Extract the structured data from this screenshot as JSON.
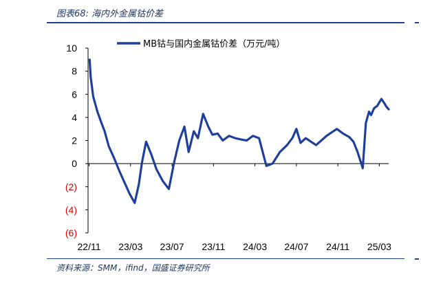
{
  "figure": {
    "title": "图表68: 海内外金属钴价差",
    "source": "资料来源：SMM，ifind，国盛证券研究所"
  },
  "colors": {
    "series": "#1f3f9a",
    "negative_tick": "#e00000",
    "rule": "#1f3f8f"
  },
  "chart_data": {
    "type": "line",
    "title": "",
    "xlabel": "",
    "ylabel": "",
    "ylim": [
      -6,
      10
    ],
    "yticks": [
      10,
      8,
      6,
      4,
      2,
      0,
      -2,
      -4,
      -6
    ],
    "ytick_labels": [
      "10",
      "8",
      "6",
      "4",
      "2",
      "0",
      "(2)",
      "(4)",
      "(6)"
    ],
    "xticks": [
      "22/11",
      "23/03",
      "23/07",
      "23/11",
      "24/03",
      "24/07",
      "24/11",
      "25/03"
    ],
    "x_range": [
      0,
      29
    ],
    "grid": false,
    "legend": "top-center",
    "series": [
      {
        "name": "MB钴与国内金属钴价差（万元/吨）",
        "x": [
          0.15,
          0.25,
          0.5,
          0.9,
          1.3,
          1.6,
          2.0,
          2.5,
          3.0,
          3.5,
          4.0,
          4.5,
          4.9,
          5.2,
          5.6,
          6.1,
          6.6,
          7.2,
          7.8,
          8.3,
          8.8,
          9.3,
          9.7,
          10.2,
          10.6,
          11.1,
          11.6,
          12.0,
          12.5,
          13.0,
          13.6,
          14.2,
          14.7,
          15.3,
          15.9,
          16.5,
          17.2,
          17.8,
          18.5,
          19.2,
          19.7,
          20.1,
          20.5,
          21.0,
          21.5,
          22.0,
          22.5,
          23.0,
          23.5,
          24.0,
          24.6,
          25.2,
          25.6,
          26.0,
          26.5,
          26.8,
          27.1,
          27.3,
          27.6,
          27.9,
          28.3,
          28.6,
          28.8,
          29.0
        ],
        "values": [
          9.0,
          7.5,
          5.8,
          4.5,
          3.5,
          2.8,
          1.5,
          0.5,
          -0.6,
          -1.6,
          -2.6,
          -3.4,
          -1.8,
          0.1,
          1.9,
          0.8,
          -0.5,
          -1.5,
          -2.2,
          0.1,
          2.0,
          3.2,
          1.0,
          2.8,
          2.2,
          4.3,
          3.2,
          2.5,
          2.6,
          2.0,
          2.4,
          2.2,
          2.1,
          2.0,
          2.4,
          2.2,
          -0.2,
          0.0,
          1.0,
          1.6,
          2.2,
          3.0,
          1.8,
          2.2,
          1.9,
          1.6,
          2.0,
          2.4,
          2.7,
          3.0,
          2.6,
          2.3,
          1.9,
          1.0,
          -0.4,
          3.5,
          4.5,
          4.2,
          4.8,
          5.0,
          5.6,
          5.2,
          4.9,
          4.7
        ]
      }
    ]
  }
}
